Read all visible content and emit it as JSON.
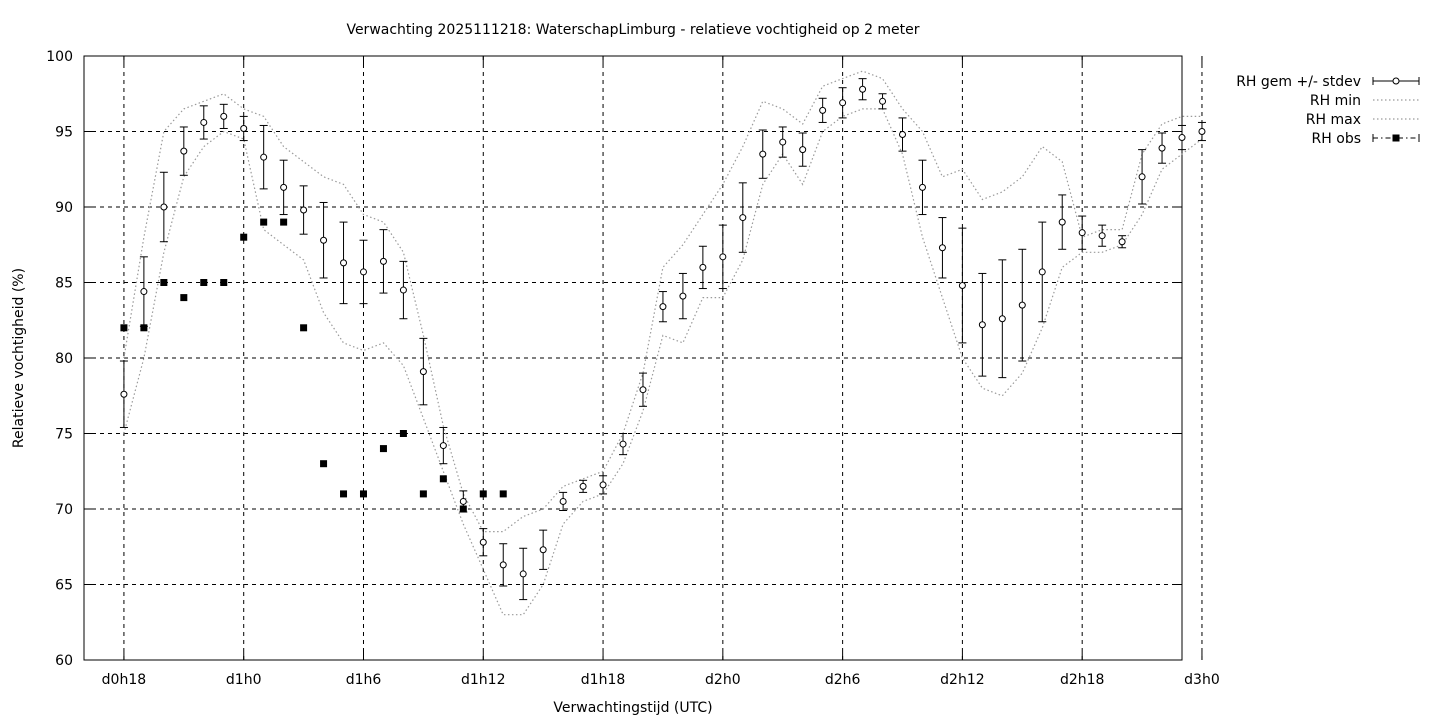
{
  "chart_data": {
    "type": "line",
    "title": "Verwachting 2025111218: WaterschapLimburg - relatieve vochtigheid op 2 meter",
    "xlabel": "Verwachtingstijd (UTC)",
    "ylabel": "Relatieve vochtigheid (%)",
    "xlim": [
      16,
      71
    ],
    "ylim": [
      60,
      100
    ],
    "grid": true,
    "legend_position": "outside-top-right",
    "x_unit": "hours since d0h0",
    "x_ticks": [
      {
        "x": 18,
        "label": "d0h18"
      },
      {
        "x": 24,
        "label": "d1h0"
      },
      {
        "x": 30,
        "label": "d1h6"
      },
      {
        "x": 36,
        "label": "d1h12"
      },
      {
        "x": 42,
        "label": "d1h18"
      },
      {
        "x": 48,
        "label": "d2h0"
      },
      {
        "x": 54,
        "label": "d2h6"
      },
      {
        "x": 60,
        "label": "d2h12"
      },
      {
        "x": 66,
        "label": "d2h18"
      },
      {
        "x": 72,
        "label": "d3h0"
      }
    ],
    "y_ticks": [
      60,
      65,
      70,
      75,
      80,
      85,
      90,
      95,
      100
    ],
    "series": [
      {
        "name": "RH gem +/- stdev",
        "style": "errorbar",
        "x": [
          18,
          19,
          20,
          21,
          22,
          23,
          24,
          25,
          26,
          27,
          28,
          29,
          30,
          31,
          32,
          33,
          34,
          35,
          36,
          37,
          38,
          39,
          40,
          41,
          42,
          43,
          44,
          45,
          46,
          47,
          48,
          49,
          50,
          51,
          52,
          53,
          54,
          55,
          56,
          57,
          58,
          59,
          60,
          61,
          62,
          63,
          64,
          65,
          66,
          67,
          68,
          69,
          70,
          71,
          72
        ],
        "mean": [
          77.6,
          84.4,
          90.0,
          93.7,
          95.6,
          96.0,
          95.2,
          93.3,
          91.3,
          89.8,
          87.8,
          86.3,
          85.7,
          86.4,
          84.5,
          79.1,
          74.2,
          70.5,
          67.8,
          66.3,
          65.7,
          67.3,
          70.5,
          71.5,
          71.6,
          74.3,
          77.9,
          83.4,
          84.1,
          86.0,
          86.7,
          89.3,
          93.5,
          94.3,
          93.8,
          96.4,
          96.9,
          97.8,
          97.0,
          94.8,
          91.3,
          87.3,
          84.8,
          82.2,
          82.6,
          83.5,
          85.7,
          89.0,
          88.3,
          88.1,
          87.7,
          92.0,
          93.9,
          94.6,
          95.0
        ],
        "stdev": [
          2.2,
          2.3,
          2.3,
          1.6,
          1.1,
          0.8,
          0.8,
          2.1,
          1.8,
          1.6,
          2.5,
          2.7,
          2.1,
          2.1,
          1.9,
          2.2,
          1.2,
          0.7,
          0.9,
          1.4,
          1.7,
          1.3,
          0.6,
          0.4,
          0.6,
          0.7,
          1.1,
          1.0,
          1.5,
          1.4,
          2.1,
          2.3,
          1.6,
          1.0,
          1.1,
          0.8,
          1.0,
          0.7,
          0.5,
          1.1,
          1.8,
          2.0,
          3.8,
          3.4,
          3.9,
          3.7,
          3.3,
          1.8,
          1.1,
          0.7,
          0.4,
          1.8,
          1.0,
          0.8,
          0.6
        ]
      },
      {
        "name": "RH min",
        "style": "dotted",
        "x": [
          18,
          19,
          20,
          21,
          22,
          23,
          24,
          25,
          26,
          27,
          28,
          29,
          30,
          31,
          32,
          33,
          34,
          35,
          36,
          37,
          38,
          39,
          40,
          41,
          42,
          43,
          44,
          45,
          46,
          47,
          48,
          49,
          50,
          51,
          52,
          53,
          54,
          55,
          56,
          57,
          58,
          59,
          60,
          61,
          62,
          63,
          64,
          65,
          66,
          67,
          68,
          69,
          70,
          71,
          72
        ],
        "values": [
          75.0,
          80.0,
          87.0,
          92.0,
          94.0,
          95.0,
          94.5,
          88.5,
          87.5,
          86.5,
          83.0,
          81.0,
          80.5,
          81.0,
          79.5,
          76.0,
          72.5,
          69.0,
          66.0,
          63.0,
          63.0,
          65.0,
          69.0,
          70.5,
          71.0,
          73.0,
          76.5,
          81.5,
          81.0,
          84.0,
          84.0,
          86.5,
          91.5,
          93.5,
          91.5,
          95.0,
          96.0,
          96.5,
          96.5,
          93.5,
          88.0,
          84.0,
          80.0,
          78.0,
          77.5,
          79.0,
          82.0,
          86.0,
          87.0,
          87.0,
          87.5,
          89.5,
          92.5,
          93.5,
          94.5
        ]
      },
      {
        "name": "RH max",
        "style": "dotted",
        "x": [
          18,
          19,
          20,
          21,
          22,
          23,
          24,
          25,
          26,
          27,
          28,
          29,
          30,
          31,
          32,
          33,
          34,
          35,
          36,
          37,
          38,
          39,
          40,
          41,
          42,
          43,
          44,
          45,
          46,
          47,
          48,
          49,
          50,
          51,
          52,
          53,
          54,
          55,
          56,
          57,
          58,
          59,
          60,
          61,
          62,
          63,
          64,
          65,
          66,
          67,
          68,
          69,
          70,
          71,
          72
        ],
        "values": [
          80.0,
          88.0,
          95.0,
          96.5,
          97.0,
          97.5,
          96.5,
          96.0,
          94.0,
          93.0,
          92.0,
          91.5,
          89.5,
          89.0,
          87.0,
          81.5,
          75.5,
          71.0,
          68.5,
          68.5,
          69.5,
          70.0,
          71.5,
          72.0,
          72.5,
          75.0,
          79.0,
          86.0,
          87.5,
          89.5,
          91.5,
          94.0,
          97.0,
          96.5,
          95.5,
          98.0,
          98.5,
          99.0,
          98.5,
          96.5,
          95.0,
          92.0,
          92.5,
          90.5,
          91.0,
          92.0,
          94.0,
          93.0,
          88.0,
          88.5,
          88.5,
          93.5,
          95.5,
          96.0,
          96.0
        ]
      },
      {
        "name": "RH obs",
        "style": "square",
        "x": [
          18,
          19,
          20,
          21,
          22,
          23,
          24,
          25,
          26,
          27,
          28,
          29,
          30,
          31,
          32,
          33,
          34,
          35,
          36,
          37
        ],
        "values": [
          82,
          82,
          85,
          84,
          85,
          85,
          88,
          89,
          89,
          82,
          73,
          71,
          71,
          74,
          75,
          71,
          72,
          70,
          71,
          71
        ]
      }
    ]
  }
}
